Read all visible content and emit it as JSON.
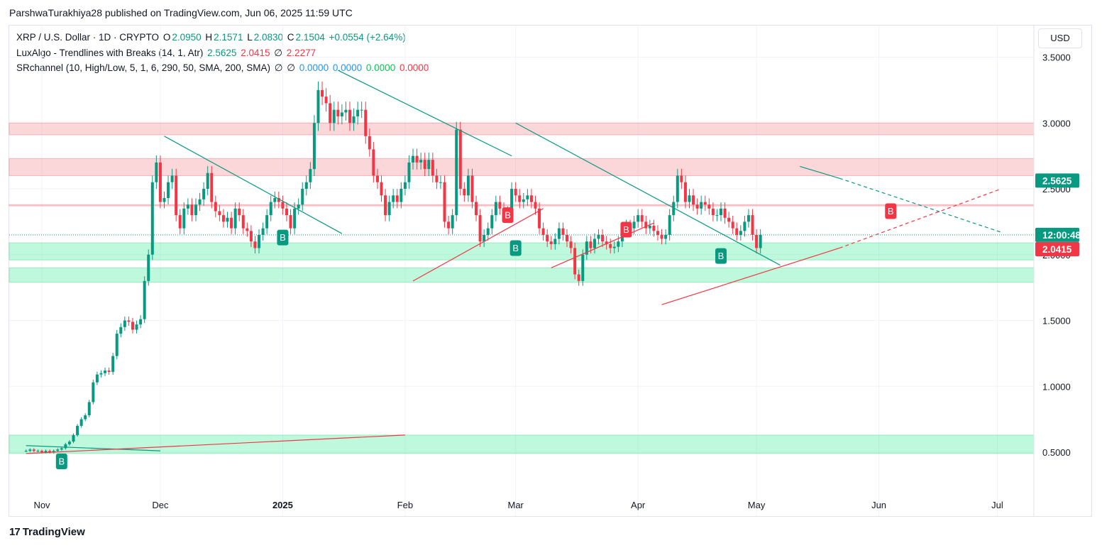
{
  "header": {
    "published": "ParshwaTurakhiya28 published on TradingView.com, Jun 06, 2025 11:59 UTC"
  },
  "legend": {
    "line1": {
      "symbol": "XRP / U.S. Dollar · 1D · CRYPTO",
      "o_label": "O",
      "o": "2.0950",
      "h_label": "H",
      "h": "2.1571",
      "l_label": "L",
      "l": "2.0830",
      "c_label": "C",
      "c": "2.1504",
      "change": "+0.0554 (+2.64%)"
    },
    "line2": {
      "name": "LuxAlgo - Trendlines with Breaks (14, 1, Atr)",
      "v1": "2.5625",
      "v2": "2.0415",
      "v3": "∅",
      "v4": "2.2277"
    },
    "line3": {
      "name": "SRchannel (10, High/Low, 5, 1, 6, 290, 50, SMA, 200, SMA)",
      "v1": "∅",
      "v2": "∅",
      "v3": "0.0000",
      "v4": "0.0000",
      "v5": "0.0000",
      "v6": "0.0000"
    }
  },
  "currency_button": "USD",
  "brand": {
    "logo": "17",
    "name": "TradingView"
  },
  "chart_data": {
    "type": "candlestick",
    "y_axis_ticks": [
      "3.5000",
      "3.0000",
      "2.5000",
      "2.0000",
      "1.5000",
      "1.0000",
      "0.5000"
    ],
    "y_tick_values": [
      3.5,
      3.0,
      2.5,
      2.0,
      1.5,
      1.0,
      0.5
    ],
    "x_axis_ticks": [
      {
        "label": "Nov",
        "date": "2024-11-01",
        "bold": false
      },
      {
        "label": "Dec",
        "date": "2024-12-01",
        "bold": false
      },
      {
        "label": "2025",
        "date": "2025-01-01",
        "bold": true
      },
      {
        "label": "Feb",
        "date": "2025-02-01",
        "bold": false
      },
      {
        "label": "Mar",
        "date": "2025-03-01",
        "bold": false
      },
      {
        "label": "Apr",
        "date": "2025-04-01",
        "bold": false
      },
      {
        "label": "May",
        "date": "2025-05-01",
        "bold": false
      },
      {
        "label": "Jun",
        "date": "2025-06-01",
        "bold": false
      },
      {
        "label": "Jul",
        "date": "2025-07-01",
        "bold": false
      }
    ],
    "price_labels": [
      {
        "text": "2.5625",
        "value": 2.5625,
        "color": "#089981"
      },
      {
        "text": "12:00:48",
        "value": 2.1504,
        "color": "#089981"
      },
      {
        "text": "2.0415",
        "value": 2.0415,
        "color": "#f23645"
      }
    ],
    "current_price": 2.1504,
    "resistance_zones": [
      {
        "from": 2.91,
        "to": 3.0
      },
      {
        "from": 2.6,
        "to": 2.73
      },
      {
        "from": 2.37,
        "to": 2.38
      }
    ],
    "support_zones": [
      {
        "from": 1.96,
        "to": 2.09
      },
      {
        "from": 1.79,
        "to": 1.9
      },
      {
        "from": 0.49,
        "to": 0.63
      }
    ],
    "trendlines": [
      {
        "color": "#089981",
        "dashed": false,
        "points": [
          [
            "2024-10-28",
            0.55
          ],
          [
            "2024-12-01",
            0.51
          ]
        ]
      },
      {
        "color": "#f23645",
        "dashed": false,
        "points": [
          [
            "2024-10-28",
            0.49
          ],
          [
            "2025-02-01",
            0.63
          ]
        ]
      },
      {
        "color": "#089981",
        "dashed": false,
        "points": [
          [
            "2024-12-02",
            2.9
          ],
          [
            "2025-01-16",
            2.16
          ]
        ]
      },
      {
        "color": "#089981",
        "dashed": false,
        "points": [
          [
            "2025-01-15",
            3.4
          ],
          [
            "2025-02-28",
            2.75
          ]
        ]
      },
      {
        "color": "#f23645",
        "dashed": false,
        "points": [
          [
            "2025-02-03",
            1.8
          ],
          [
            "2025-03-08",
            2.35
          ]
        ]
      },
      {
        "color": "#089981",
        "dashed": false,
        "points": [
          [
            "2025-03-01",
            3.0
          ],
          [
            "2025-05-07",
            1.92
          ]
        ]
      },
      {
        "color": "#f23645",
        "dashed": false,
        "points": [
          [
            "2025-03-10",
            1.9
          ],
          [
            "2025-04-05",
            2.24
          ]
        ]
      },
      {
        "color": "#f23645",
        "dashed": false,
        "points": [
          [
            "2025-04-07",
            1.62
          ],
          [
            "2025-05-22",
            2.05
          ]
        ]
      },
      {
        "color": "#f23645",
        "dashed": true,
        "points": [
          [
            "2025-05-22",
            2.05
          ],
          [
            "2025-07-02",
            2.5
          ]
        ]
      },
      {
        "color": "#089981",
        "dashed": false,
        "points": [
          [
            "2025-05-12",
            2.67
          ],
          [
            "2025-05-22",
            2.58
          ]
        ]
      },
      {
        "color": "#089981",
        "dashed": true,
        "points": [
          [
            "2025-05-22",
            2.58
          ],
          [
            "2025-07-02",
            2.17
          ]
        ]
      }
    ],
    "break_labels": [
      {
        "text": "B",
        "date": "2024-11-06",
        "value": 0.43,
        "color": "#089981"
      },
      {
        "text": "B",
        "date": "2025-01-01",
        "value": 2.13,
        "color": "#089981"
      },
      {
        "text": "B",
        "date": "2025-03-01",
        "value": 2.05,
        "color": "#089981"
      },
      {
        "text": "B",
        "date": "2025-02-27",
        "value": 2.3,
        "color": "#f23645"
      },
      {
        "text": "B",
        "date": "2025-03-29",
        "value": 2.19,
        "color": "#f23645"
      },
      {
        "text": "B",
        "date": "2025-04-22",
        "value": 1.99,
        "color": "#089981"
      },
      {
        "text": "B",
        "date": "2025-06-04",
        "value": 2.33,
        "color": "#f23645"
      }
    ],
    "candles_daily_closes": {
      "start_date": "2024-10-28",
      "closes": [
        0.51,
        0.52,
        0.51,
        0.51,
        0.5,
        0.51,
        0.5,
        0.51,
        0.52,
        0.53,
        0.56,
        0.58,
        0.63,
        0.7,
        0.75,
        0.78,
        0.88,
        1.03,
        1.09,
        1.1,
        1.12,
        1.11,
        1.23,
        1.4,
        1.45,
        1.5,
        1.49,
        1.43,
        1.47,
        1.51,
        1.8,
        2.0,
        2.55,
        2.7,
        2.4,
        2.43,
        2.55,
        2.6,
        2.3,
        2.2,
        2.35,
        2.38,
        2.3,
        2.38,
        2.42,
        2.5,
        2.62,
        2.4,
        2.33,
        2.3,
        2.25,
        2.28,
        2.2,
        2.35,
        2.3,
        2.2,
        2.18,
        2.1,
        2.05,
        2.15,
        2.2,
        2.3,
        2.4,
        2.43,
        2.4,
        2.35,
        2.3,
        2.2,
        2.35,
        2.38,
        2.5,
        2.55,
        2.65,
        3.0,
        3.25,
        3.2,
        3.15,
        3.0,
        3.1,
        3.05,
        3.08,
        3.1,
        3.0,
        3.05,
        3.1,
        3.1,
        2.9,
        2.8,
        2.6,
        2.55,
        2.45,
        2.3,
        2.4,
        2.45,
        2.4,
        2.5,
        2.55,
        2.7,
        2.75,
        2.7,
        2.72,
        2.65,
        2.72,
        2.6,
        2.55,
        2.55,
        2.25,
        2.2,
        2.3,
        2.95,
        2.5,
        2.45,
        2.6,
        2.4,
        2.3,
        2.1,
        2.15,
        2.2,
        2.3,
        2.4,
        2.35,
        2.3,
        2.32,
        2.5,
        2.45,
        2.4,
        2.42,
        2.45,
        2.4,
        2.35,
        2.2,
        2.15,
        2.1,
        2.08,
        2.12,
        2.2,
        2.15,
        2.1,
        2.05,
        1.85,
        1.8,
        2.0,
        2.1,
        2.05,
        2.12,
        2.15,
        2.1,
        2.08,
        2.05,
        2.06,
        2.1,
        2.2,
        2.22,
        2.2,
        2.25,
        2.3,
        2.25,
        2.2,
        2.22,
        2.18,
        2.15,
        2.12,
        2.15,
        2.3,
        2.4,
        2.6,
        2.55,
        2.4,
        2.45,
        2.38,
        2.35,
        2.4,
        2.38,
        2.35,
        2.3,
        2.3,
        2.35,
        2.28,
        2.25,
        2.2,
        2.15,
        2.18,
        2.25,
        2.3,
        2.15,
        2.05,
        2.15
      ]
    }
  }
}
